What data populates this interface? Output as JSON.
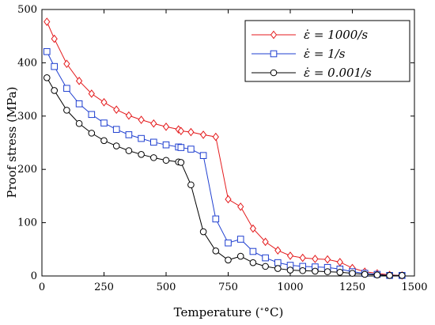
{
  "chart_data": {
    "type": "line",
    "xlabel": "Temperature (",
    "xlabel_unit": "°C)",
    "ylabel": "Proof stress (MPa)",
    "xlim": [
      0,
      1500
    ],
    "ylim": [
      0,
      500
    ],
    "xticks": [
      "0",
      "250",
      "500",
      "750",
      "1000",
      "1250",
      "1500"
    ],
    "yticks": [
      "0",
      "100",
      "200",
      "300",
      "400",
      "500"
    ],
    "grid": false,
    "legend_position": "top-right",
    "series": [
      {
        "name": "ε̇ = 1000/s",
        "color": "#e41a1c",
        "marker": "diamond",
        "x": [
          20,
          50,
          100,
          150,
          200,
          250,
          300,
          350,
          400,
          450,
          500,
          550,
          560,
          600,
          650,
          700,
          750,
          800,
          850,
          900,
          950,
          1000,
          1050,
          1100,
          1150,
          1200,
          1250,
          1300,
          1350,
          1400,
          1450
        ],
        "y": [
          477,
          445,
          398,
          366,
          342,
          326,
          312,
          301,
          293,
          286,
          280,
          275,
          272,
          270,
          265,
          261,
          144,
          130,
          89,
          64,
          48,
          38,
          34,
          32,
          31,
          26,
          15,
          8,
          5,
          2,
          1
        ]
      },
      {
        "name": "ε̇ = 1/s",
        "color": "#1f3fd0",
        "marker": "square",
        "x": [
          20,
          50,
          100,
          150,
          200,
          250,
          300,
          350,
          400,
          450,
          500,
          550,
          560,
          600,
          650,
          700,
          750,
          800,
          850,
          900,
          950,
          1000,
          1050,
          1100,
          1150,
          1200,
          1250,
          1300,
          1350,
          1400,
          1450
        ],
        "y": [
          421,
          393,
          352,
          323,
          303,
          287,
          275,
          265,
          258,
          251,
          246,
          242,
          241,
          238,
          226,
          107,
          62,
          69,
          46,
          34,
          25,
          20,
          18,
          17,
          16,
          13,
          8,
          5,
          3,
          1,
          1
        ]
      },
      {
        "name": "ε̇ = 0.001/s",
        "color": "#000000",
        "marker": "circle",
        "x": [
          20,
          50,
          100,
          150,
          200,
          250,
          300,
          350,
          400,
          450,
          500,
          550,
          560,
          600,
          650,
          700,
          750,
          800,
          850,
          900,
          950,
          1000,
          1050,
          1100,
          1150,
          1200,
          1250,
          1300,
          1350,
          1400,
          1450
        ],
        "y": [
          372,
          348,
          311,
          286,
          268,
          254,
          244,
          235,
          228,
          222,
          217,
          214,
          213,
          171,
          83,
          47,
          30,
          37,
          25,
          18,
          14,
          11,
          10,
          9,
          8,
          7,
          5,
          3,
          2,
          1,
          1
        ]
      }
    ]
  }
}
